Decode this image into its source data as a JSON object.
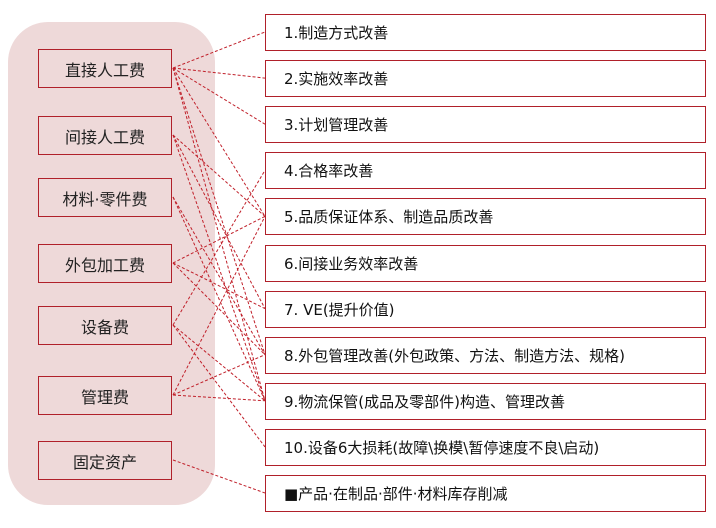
{
  "left_items": [
    "直接人工费",
    "间接人工费",
    "材料·零件费",
    "外包加工费",
    "设备费",
    "管理费",
    "固定资产"
  ],
  "right_items": [
    "1.制造方式改善",
    "2.实施效率改善",
    "3.计划管理改善",
    "4.合格率改善",
    "5.品质保证体系、制造品质改善",
    "6.间接业务效率改善",
    "7. VE(提升价值)",
    "8.外包管理改善(外包政策、方法、制造方法、规格)",
    "9.物流保管(成品及零部件)构造、管理改善",
    "10.设备6大损耗(故障\\换模\\暂停速度不良\\启动)",
    "■产品·在制品·部件·材料库存削减"
  ],
  "connections": [
    [
      0,
      0
    ],
    [
      0,
      1
    ],
    [
      0,
      2
    ],
    [
      0,
      4
    ],
    [
      0,
      7
    ],
    [
      0,
      8
    ],
    [
      1,
      4
    ],
    [
      1,
      6
    ],
    [
      1,
      8
    ],
    [
      2,
      7
    ],
    [
      2,
      8
    ],
    [
      3,
      4
    ],
    [
      3,
      6
    ],
    [
      3,
      7
    ],
    [
      4,
      3
    ],
    [
      4,
      8
    ],
    [
      4,
      9
    ],
    [
      5,
      4
    ],
    [
      5,
      7
    ],
    [
      5,
      8
    ],
    [
      6,
      10
    ]
  ],
  "colors": {
    "panel": "#eed9d9",
    "border": "#b0202a",
    "line": "#c0202a"
  }
}
